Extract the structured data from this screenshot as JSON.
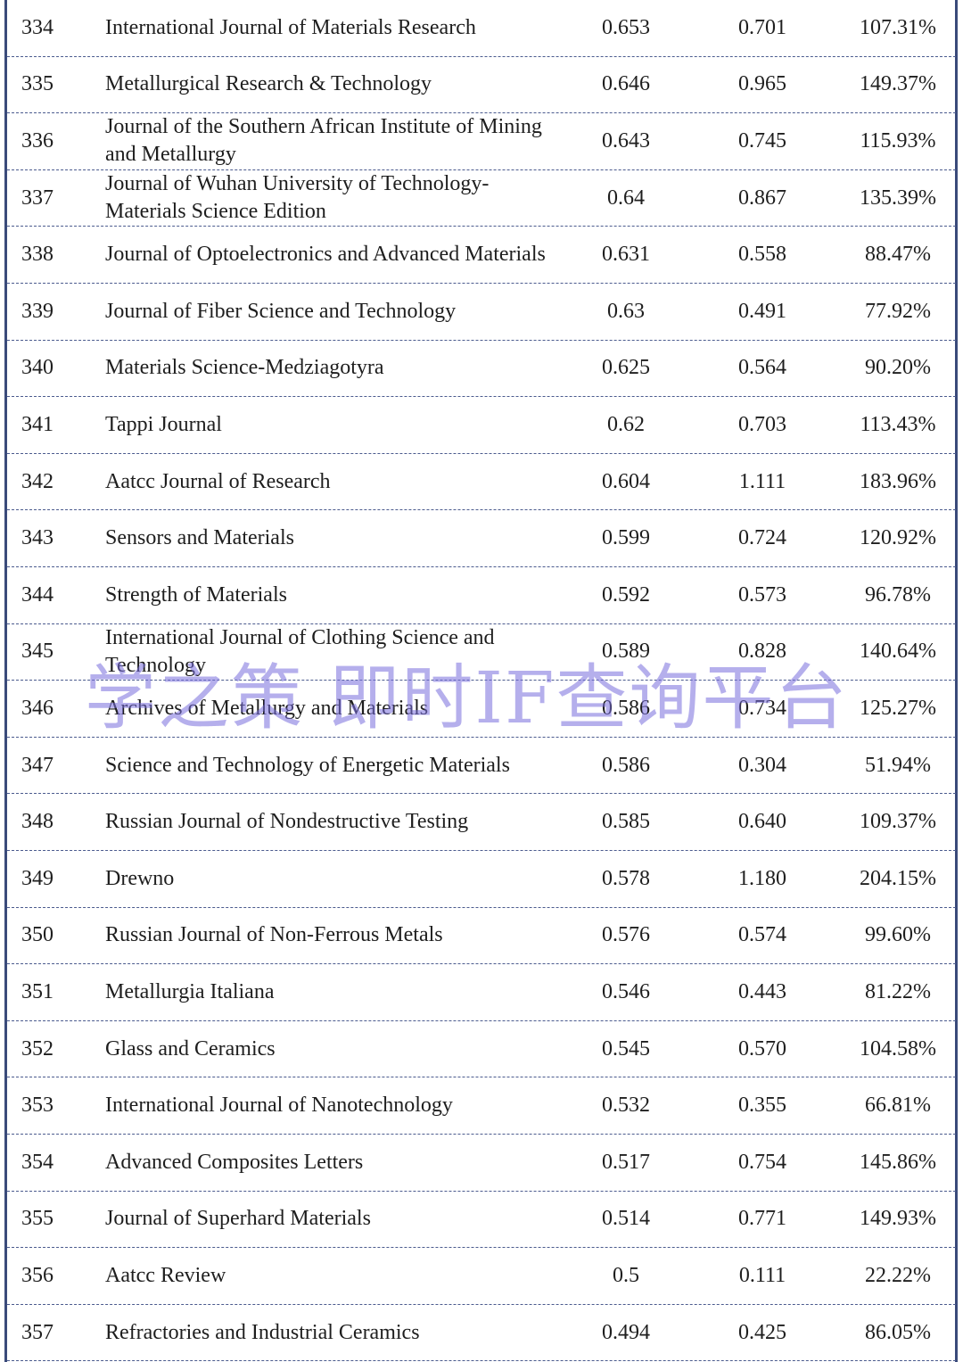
{
  "table": {
    "rows": [
      [
        "334",
        "International Journal of Materials Research",
        "0.653",
        "0.701",
        "107.31%"
      ],
      [
        "335",
        "Metallurgical Research & Technology",
        "0.646",
        "0.965",
        "149.37%"
      ],
      [
        "336",
        "Journal of the Southern African Institute of Mining and Metallurgy",
        "0.643",
        "0.745",
        "115.93%"
      ],
      [
        "337",
        "Journal of Wuhan University of Technology-Materials Science Edition",
        "0.64",
        "0.867",
        "135.39%"
      ],
      [
        "338",
        "Journal of Optoelectronics and Advanced Materials",
        "0.631",
        "0.558",
        "88.47%"
      ],
      [
        "339",
        "Journal of Fiber Science and Technology",
        "0.63",
        "0.491",
        "77.92%"
      ],
      [
        "340",
        "Materials Science-Medziagotyra",
        "0.625",
        "0.564",
        "90.20%"
      ],
      [
        "341",
        "Tappi Journal",
        "0.62",
        "0.703",
        "113.43%"
      ],
      [
        "342",
        "Aatcc Journal of Research",
        "0.604",
        "1.111",
        "183.96%"
      ],
      [
        "343",
        "Sensors and Materials",
        "0.599",
        "0.724",
        "120.92%"
      ],
      [
        "344",
        "Strength of Materials",
        "0.592",
        "0.573",
        "96.78%"
      ],
      [
        "345",
        "International Journal of Clothing Science and Technology",
        "0.589",
        "0.828",
        "140.64%"
      ],
      [
        "346",
        "Archives of Metallurgy and Materials",
        "0.586",
        "0.734",
        "125.27%"
      ],
      [
        "347",
        "Science and Technology of Energetic Materials",
        "0.586",
        "0.304",
        "51.94%"
      ],
      [
        "348",
        "Russian Journal of Nondestructive Testing",
        "0.585",
        "0.640",
        "109.37%"
      ],
      [
        "349",
        "Drewno",
        "0.578",
        "1.180",
        "204.15%"
      ],
      [
        "350",
        "Russian Journal of Non-Ferrous Metals",
        "0.576",
        "0.574",
        "99.60%"
      ],
      [
        "351",
        "Metallurgia Italiana",
        "0.546",
        "0.443",
        "81.22%"
      ],
      [
        "352",
        "Glass and Ceramics",
        "0.545",
        "0.570",
        "104.58%"
      ],
      [
        "353",
        "International Journal of Nanotechnology",
        "0.532",
        "0.355",
        "66.81%"
      ],
      [
        "354",
        "Advanced Composites Letters",
        "0.517",
        "0.754",
        "145.86%"
      ],
      [
        "355",
        "Journal of Superhard Materials",
        "0.514",
        "0.771",
        "149.93%"
      ],
      [
        "356",
        "Aatcc Review",
        "0.5",
        "0.111",
        "22.22%"
      ],
      [
        "357",
        "Refractories and Industrial Ceramics",
        "0.494",
        "0.425",
        "86.05%"
      ]
    ]
  },
  "watermark": "学之策 即时IF查询平台"
}
